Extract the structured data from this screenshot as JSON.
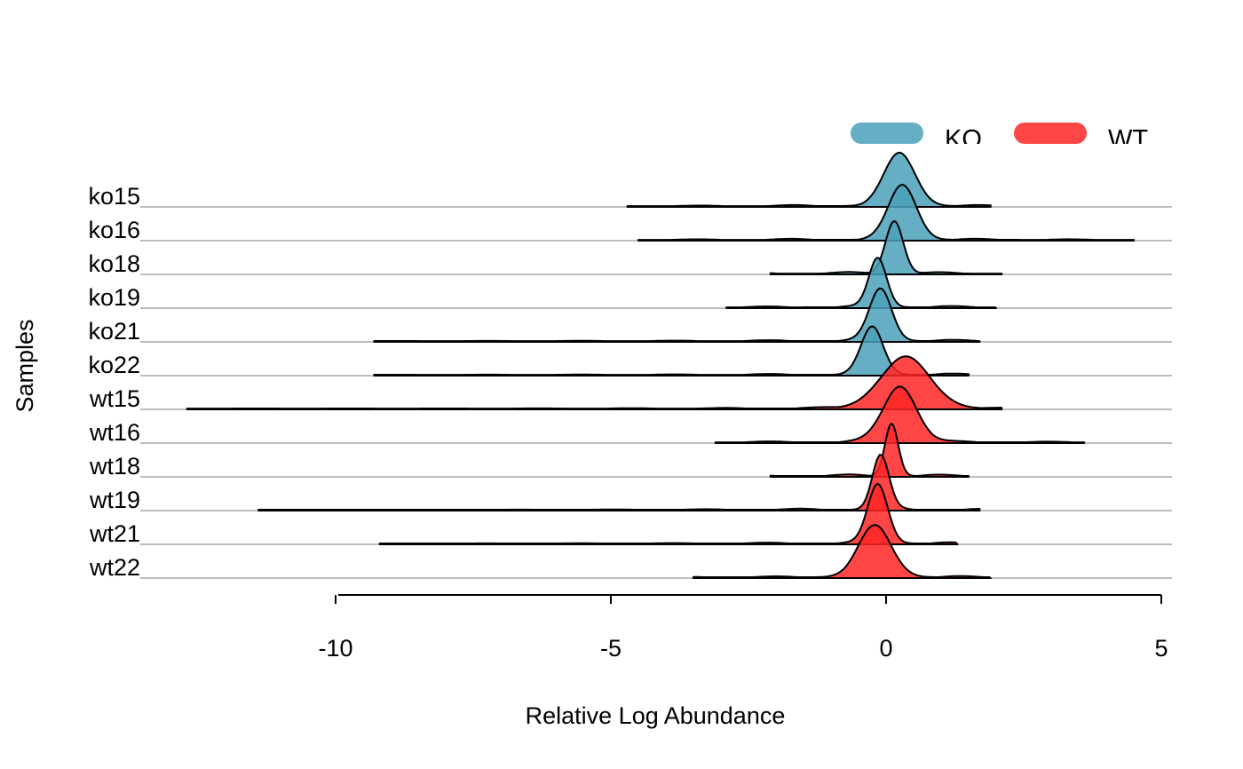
{
  "chart_data": {
    "type": "ridgeline",
    "xlabel": "Relative Log Abundance",
    "ylabel": "Samples",
    "xlim": [
      -13.5,
      5.2
    ],
    "xticks": [
      -10,
      -5,
      0,
      5
    ],
    "xtick_labels": [
      "-10",
      "-5",
      "0",
      "5"
    ],
    "grid": false,
    "legend": {
      "position": "top-right",
      "entries": [
        {
          "label": "KO",
          "color": "#4aa0b8"
        },
        {
          "label": "WT",
          "color": "#ff2626"
        }
      ]
    },
    "series": [
      {
        "name": "ko15",
        "group": "KO",
        "min": -4.7,
        "max": 1.9,
        "peaks": [
          [
            0.25,
            1.55,
            0.28
          ]
        ]
      },
      {
        "name": "ko16",
        "group": "KO",
        "min": -4.5,
        "max": 4.5,
        "peaks": [
          [
            0.3,
            1.62,
            0.25
          ]
        ]
      },
      {
        "name": "ko18",
        "group": "KO",
        "min": -2.1,
        "max": 2.1,
        "peaks": [
          [
            0.15,
            1.55,
            0.16
          ]
        ]
      },
      {
        "name": "ko19",
        "group": "KO",
        "min": -2.9,
        "max": 2.0,
        "peaks": [
          [
            -0.15,
            1.45,
            0.16
          ]
        ]
      },
      {
        "name": "ko21",
        "group": "KO",
        "min": -9.3,
        "max": 1.7,
        "peaks": [
          [
            -0.1,
            1.55,
            0.2
          ]
        ]
      },
      {
        "name": "ko22",
        "group": "KO",
        "min": -9.3,
        "max": 1.5,
        "peaks": [
          [
            -0.25,
            1.4,
            0.2
          ]
        ]
      },
      {
        "name": "wt15",
        "group": "WT",
        "min": -12.7,
        "max": 2.1,
        "peaks": [
          [
            0.35,
            1.5,
            0.45
          ]
        ]
      },
      {
        "name": "wt16",
        "group": "WT",
        "min": -3.1,
        "max": 3.6,
        "peaks": [
          [
            0.25,
            1.65,
            0.3
          ]
        ]
      },
      {
        "name": "wt18",
        "group": "WT",
        "min": -2.1,
        "max": 1.5,
        "peaks": [
          [
            0.1,
            1.55,
            0.12
          ]
        ]
      },
      {
        "name": "wt19",
        "group": "WT",
        "min": -11.4,
        "max": 1.7,
        "peaks": [
          [
            -0.1,
            1.6,
            0.15
          ]
        ]
      },
      {
        "name": "wt21",
        "group": "WT",
        "min": -9.2,
        "max": 1.3,
        "peaks": [
          [
            -0.15,
            1.75,
            0.18
          ]
        ]
      },
      {
        "name": "wt22",
        "group": "WT",
        "min": -3.5,
        "max": 1.9,
        "peaks": [
          [
            -0.2,
            1.5,
            0.3
          ]
        ]
      }
    ]
  }
}
